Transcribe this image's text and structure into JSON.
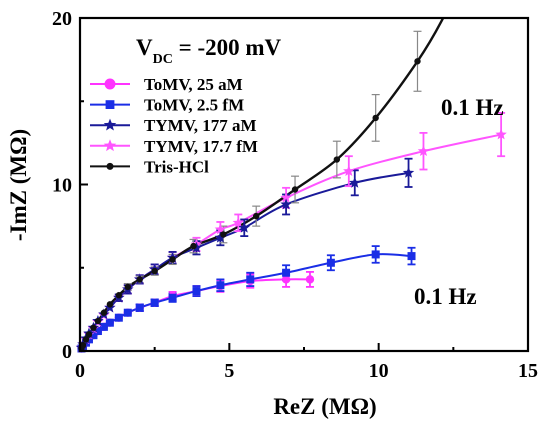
{
  "chart_data": {
    "type": "scatter",
    "xlabel": "ReZ (MΩ)",
    "ylabel": "-ImZ (MΩ)",
    "xlim": [
      0,
      15
    ],
    "ylim": [
      0,
      20
    ],
    "xticks": [
      "0",
      "5",
      "10",
      "15"
    ],
    "yticks": [
      "0",
      "10",
      "20"
    ],
    "x_tick_values": [
      0,
      5,
      10,
      15
    ],
    "y_tick_values": [
      0,
      10,
      20
    ],
    "x_minor_ticks": [
      2.5,
      7.5,
      12.5
    ],
    "y_minor_ticks": [
      5,
      15
    ],
    "grid": false,
    "legend_position": "top-left",
    "annotations": {
      "vdc_main": "V",
      "vdc_sub": "DC",
      "vdc_rest": " = -200 mV",
      "freq_upper": "0.1 Hz",
      "freq_lower": "0.1 Hz"
    },
    "series": [
      {
        "name": "ToMV,  25 aM",
        "color": "#ff33ff",
        "marker": "circle",
        "points": [
          [
            0.05,
            0.15
          ],
          [
            0.1,
            0.3
          ],
          [
            0.2,
            0.5
          ],
          [
            0.3,
            0.7
          ],
          [
            0.45,
            0.95
          ],
          [
            0.6,
            1.2
          ],
          [
            0.8,
            1.45
          ],
          [
            1.0,
            1.7
          ],
          [
            1.3,
            2.0
          ],
          [
            1.6,
            2.3
          ],
          [
            2.0,
            2.6
          ],
          [
            2.5,
            2.9
          ],
          [
            3.1,
            3.3
          ],
          [
            3.9,
            3.6
          ],
          [
            4.7,
            3.9
          ],
          [
            5.7,
            4.2
          ],
          [
            6.9,
            4.3
          ],
          [
            7.7,
            4.3
          ]
        ],
        "err": [
          0.05,
          0.05,
          0.05,
          0.05,
          0.08,
          0.1,
          0.1,
          0.15,
          0.15,
          0.15,
          0.2,
          0.2,
          0.25,
          0.3,
          0.35,
          0.4,
          0.45,
          0.45
        ]
      },
      {
        "name": "ToMV,  2.5 fM",
        "color": "#1a2ee6",
        "marker": "square",
        "points": [
          [
            0.05,
            0.15
          ],
          [
            0.1,
            0.3
          ],
          [
            0.2,
            0.5
          ],
          [
            0.3,
            0.7
          ],
          [
            0.45,
            0.95
          ],
          [
            0.6,
            1.2
          ],
          [
            0.8,
            1.45
          ],
          [
            1.0,
            1.7
          ],
          [
            1.3,
            2.0
          ],
          [
            1.6,
            2.3
          ],
          [
            2.0,
            2.6
          ],
          [
            2.5,
            2.9
          ],
          [
            3.1,
            3.2
          ],
          [
            3.9,
            3.6
          ],
          [
            4.7,
            3.95
          ],
          [
            5.7,
            4.3
          ],
          [
            6.9,
            4.7
          ],
          [
            8.4,
            5.3
          ],
          [
            9.9,
            5.8
          ],
          [
            11.1,
            5.7
          ]
        ],
        "err": [
          0.05,
          0.05,
          0.05,
          0.05,
          0.08,
          0.1,
          0.1,
          0.15,
          0.15,
          0.15,
          0.2,
          0.2,
          0.25,
          0.3,
          0.35,
          0.4,
          0.45,
          0.45,
          0.5,
          0.5
        ]
      },
      {
        "name": "TYMV, 177 aM",
        "color": "#1a1a99",
        "marker": "star",
        "points": [
          [
            0.05,
            0.2
          ],
          [
            0.1,
            0.4
          ],
          [
            0.2,
            0.75
          ],
          [
            0.3,
            1.05
          ],
          [
            0.45,
            1.4
          ],
          [
            0.6,
            1.8
          ],
          [
            0.8,
            2.2
          ],
          [
            1.0,
            2.6
          ],
          [
            1.3,
            3.2
          ],
          [
            1.6,
            3.7
          ],
          [
            2.0,
            4.3
          ],
          [
            2.5,
            4.9
          ],
          [
            3.1,
            5.6
          ],
          [
            3.9,
            6.2
          ],
          [
            4.7,
            6.8
          ],
          [
            5.5,
            7.4
          ],
          [
            6.9,
            8.8
          ],
          [
            9.2,
            10.1
          ],
          [
            11.0,
            10.7
          ]
        ],
        "err": [
          0.05,
          0.05,
          0.05,
          0.08,
          0.1,
          0.12,
          0.15,
          0.15,
          0.2,
          0.25,
          0.25,
          0.3,
          0.35,
          0.4,
          0.45,
          0.5,
          0.6,
          0.75,
          0.85
        ]
      },
      {
        "name": "TYMV, 17.7 fM",
        "color": "#ff55ff",
        "marker": "star",
        "points": [
          [
            0.05,
            0.2
          ],
          [
            0.1,
            0.4
          ],
          [
            0.2,
            0.7
          ],
          [
            0.3,
            1.0
          ],
          [
            0.45,
            1.35
          ],
          [
            0.6,
            1.75
          ],
          [
            0.8,
            2.15
          ],
          [
            1.0,
            2.6
          ],
          [
            1.3,
            3.2
          ],
          [
            1.6,
            3.7
          ],
          [
            2.0,
            4.3
          ],
          [
            2.5,
            4.9
          ],
          [
            3.1,
            5.6
          ],
          [
            3.9,
            6.4
          ],
          [
            4.7,
            7.3
          ],
          [
            5.3,
            7.7
          ],
          [
            6.9,
            9.2
          ],
          [
            9.0,
            10.8
          ],
          [
            11.5,
            12.0
          ],
          [
            14.1,
            13.0
          ]
        ],
        "err": [
          0.05,
          0.05,
          0.05,
          0.08,
          0.1,
          0.12,
          0.15,
          0.15,
          0.2,
          0.25,
          0.25,
          0.3,
          0.35,
          0.4,
          0.45,
          0.5,
          0.6,
          0.9,
          1.1,
          1.3
        ]
      },
      {
        "name": "Tris-HCl",
        "color": "#111111",
        "marker": "dot",
        "points": [
          [
            0.05,
            0.15
          ],
          [
            0.1,
            0.35
          ],
          [
            0.2,
            0.7
          ],
          [
            0.3,
            1.0
          ],
          [
            0.45,
            1.4
          ],
          [
            0.6,
            1.8
          ],
          [
            0.8,
            2.3
          ],
          [
            1.0,
            2.8
          ],
          [
            1.3,
            3.35
          ],
          [
            1.6,
            3.85
          ],
          [
            2.0,
            4.3
          ],
          [
            2.5,
            4.8
          ],
          [
            3.1,
            5.5
          ],
          [
            3.8,
            6.3
          ],
          [
            4.8,
            7.0
          ],
          [
            5.9,
            8.1
          ],
          [
            7.2,
            9.7
          ],
          [
            8.6,
            11.5
          ],
          [
            9.9,
            14.0
          ],
          [
            11.3,
            17.4
          ]
        ],
        "err": [
          0.05,
          0.05,
          0.05,
          0.08,
          0.1,
          0.1,
          0.12,
          0.15,
          0.15,
          0.2,
          0.2,
          0.25,
          0.3,
          0.4,
          0.5,
          0.6,
          0.8,
          1.1,
          1.4,
          1.8
        ]
      }
    ]
  }
}
